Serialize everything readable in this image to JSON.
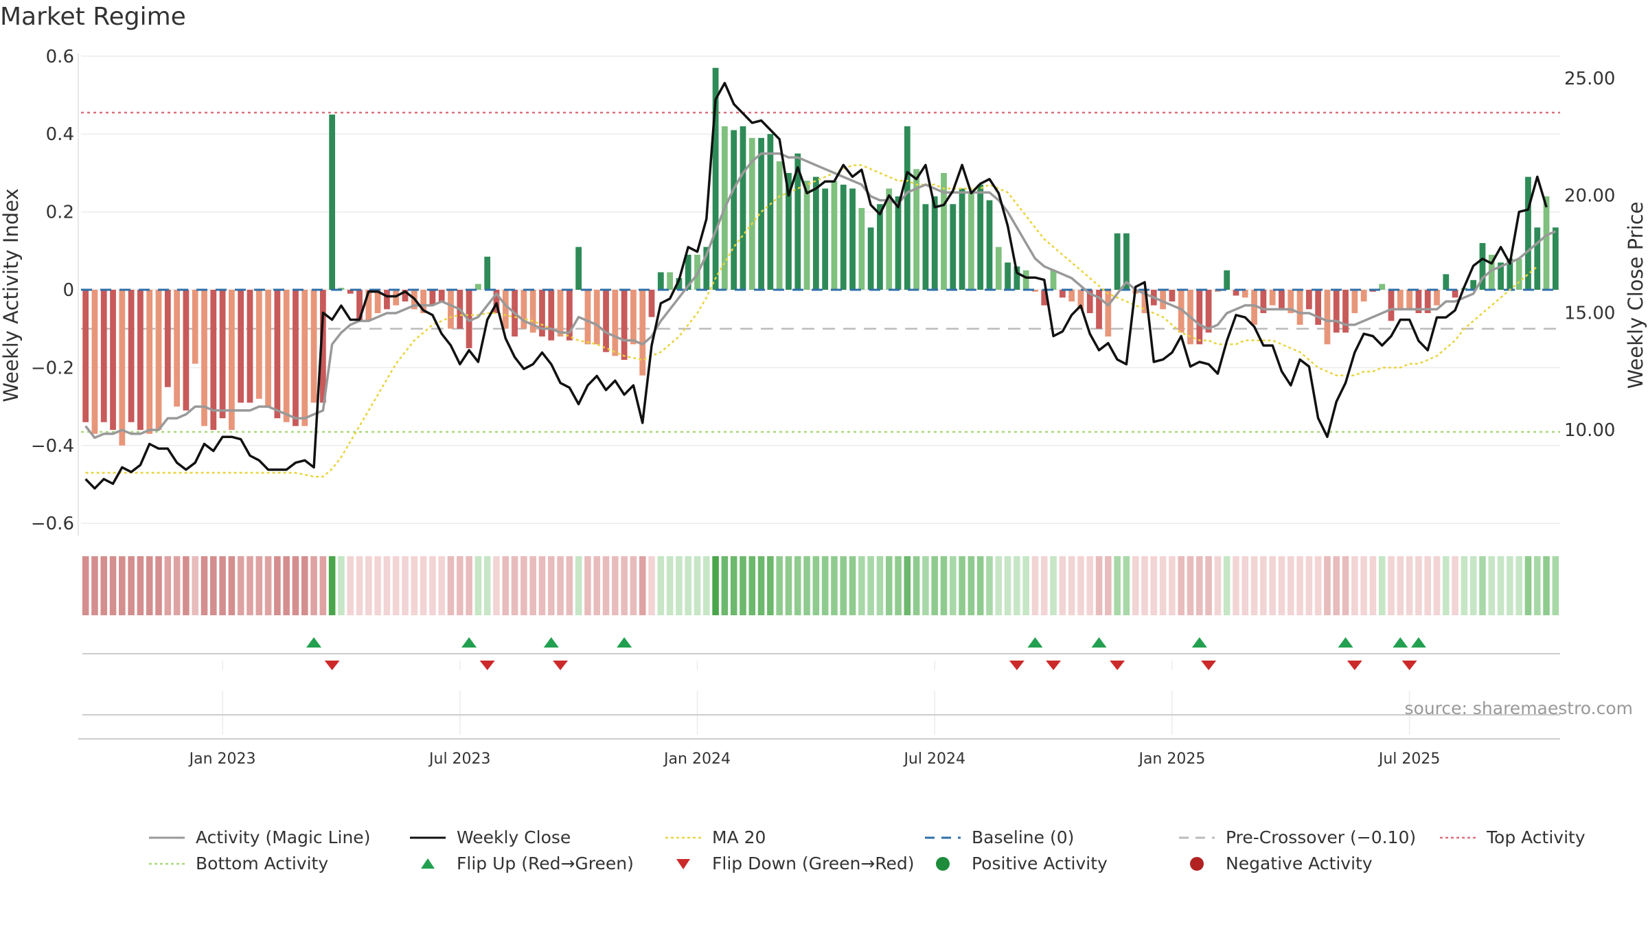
{
  "title": "Market Regime",
  "source": "source: sharemaestro.com",
  "chart_data": {
    "type": "bar",
    "title": "Market Regime",
    "ylabel": "Weekly Activity Index",
    "y2label": "Weekly Close Price",
    "ylim": [
      -0.62,
      0.6
    ],
    "y2lim": [
      5.8,
      25.5
    ],
    "yticks": [
      0.6,
      0.4,
      0.2,
      0,
      -0.2,
      -0.4,
      -0.6
    ],
    "ytick_labels": [
      "0.6",
      "0.4",
      "0.2",
      "0",
      "−0.2",
      "−0.4",
      "−0.6"
    ],
    "y2ticks": [
      25,
      20,
      15,
      10
    ],
    "y2tick_labels": [
      "25.00",
      "20.00",
      "15.00",
      "10.00"
    ],
    "xtick_labels": [
      "Jan 2023",
      "Jul 2023",
      "Jan 2024",
      "Jul 2024",
      "Jan 2025",
      "Jul 2025"
    ],
    "xtick_weeks": [
      15,
      41,
      67,
      93,
      119,
      145
    ],
    "reference_lines": {
      "top_activity": 0.455,
      "bottom_activity": -0.365,
      "pre_crossover": -0.1,
      "baseline": 0
    },
    "legend_position": "bottom",
    "grid": true,
    "colors": {
      "positive_strong": "#2e8b57",
      "positive_light": "#7fc07f",
      "negative_strong": "#c85a5a",
      "negative_light": "#e8967a",
      "close": "#111111",
      "magic_line": "#999999",
      "ma20": "#e8d43c",
      "baseline": "#2f6fa8",
      "pre_crossover": "#bbbbbb",
      "top_activity": "#d9707a",
      "bottom_activity": "#a8d878",
      "flip_up": "#22a050",
      "flip_down": "#cc2a2a"
    },
    "activity": [
      -0.34,
      -0.37,
      -0.34,
      -0.36,
      -0.4,
      -0.34,
      -0.36,
      -0.37,
      -0.36,
      -0.25,
      -0.3,
      -0.31,
      -0.19,
      -0.35,
      -0.36,
      -0.33,
      -0.36,
      -0.29,
      -0.29,
      -0.28,
      -0.3,
      -0.33,
      -0.34,
      -0.35,
      -0.35,
      -0.29,
      -0.29,
      0.45,
      0.005,
      -0.01,
      -0.08,
      -0.08,
      -0.06,
      -0.05,
      -0.04,
      -0.03,
      -0.05,
      -0.06,
      -0.04,
      -0.03,
      -0.1,
      -0.1,
      -0.15,
      0.015,
      0.085,
      -0.06,
      -0.1,
      -0.12,
      -0.1,
      -0.11,
      -0.12,
      -0.13,
      -0.12,
      -0.13,
      0.11,
      -0.14,
      -0.14,
      -0.16,
      -0.17,
      -0.18,
      -0.14,
      -0.22,
      -0.07,
      0.045,
      0.045,
      0.03,
      0.09,
      0.09,
      0.11,
      0.57,
      0.42,
      0.41,
      0.42,
      0.39,
      0.39,
      0.4,
      0.33,
      0.3,
      0.35,
      0.28,
      0.29,
      0.26,
      0.28,
      0.27,
      0.26,
      0.21,
      0.16,
      0.22,
      0.26,
      0.24,
      0.42,
      0.31,
      0.22,
      0.24,
      0.3,
      0.22,
      0.26,
      0.25,
      0.27,
      0.23,
      0.11,
      0.07,
      0.06,
      0.05,
      -0.005,
      -0.04,
      0.05,
      -0.02,
      -0.03,
      -0.05,
      -0.06,
      -0.1,
      -0.12,
      0.145,
      0.145,
      -0.01,
      -0.06,
      -0.04,
      -0.05,
      -0.03,
      -0.11,
      -0.14,
      -0.14,
      -0.11,
      -0.005,
      0.05,
      -0.015,
      -0.02,
      -0.09,
      -0.06,
      -0.04,
      -0.05,
      -0.06,
      -0.09,
      -0.05,
      -0.09,
      -0.14,
      -0.11,
      -0.11,
      -0.06,
      -0.03,
      -0.005,
      0.015,
      -0.08,
      -0.05,
      -0.05,
      -0.06,
      -0.06,
      -0.04,
      0.04,
      -0.02,
      0.005,
      0.025,
      0.12,
      0.09,
      0.07,
      0.08,
      0.08,
      0.29,
      0.16,
      0.24,
      0.16
    ],
    "close": [
      7.9,
      7.5,
      7.9,
      7.7,
      8.4,
      8.2,
      8.5,
      9.4,
      9.2,
      9.2,
      8.6,
      8.3,
      8.6,
      9.4,
      9.1,
      9.7,
      9.7,
      9.6,
      8.9,
      8.7,
      8.3,
      8.3,
      8.3,
      8.6,
      8.7,
      8.4,
      15.0,
      14.7,
      15.3,
      14.7,
      14.7,
      15.9,
      15.9,
      15.7,
      15.7,
      15.9,
      15.6,
      15.1,
      14.9,
      14.1,
      13.6,
      12.8,
      13.4,
      12.9,
      14.7,
      15.4,
      13.9,
      13.1,
      12.6,
      12.8,
      13.3,
      12.8,
      12.0,
      11.8,
      11.1,
      11.9,
      12.3,
      11.7,
      12.1,
      11.5,
      11.9,
      10.3,
      13.6,
      15.4,
      15.6,
      16.4,
      17.8,
      17.6,
      19.0,
      24.1,
      24.8,
      23.9,
      23.5,
      23.1,
      23.2,
      22.8,
      22.4,
      20.0,
      21.2,
      20.1,
      20.3,
      20.6,
      20.6,
      21.3,
      20.8,
      21.1,
      19.6,
      19.2,
      20.0,
      19.5,
      21.0,
      20.7,
      21.3,
      19.5,
      19.6,
      20.2,
      21.3,
      20.1,
      20.5,
      20.7,
      20.1,
      18.7,
      16.7,
      16.5,
      16.5,
      16.4,
      14.0,
      14.2,
      14.9,
      15.3,
      14.1,
      13.4,
      13.7,
      13.0,
      12.8,
      16.1,
      16.3,
      12.9,
      13.0,
      13.3,
      14.0,
      12.7,
      12.9,
      12.8,
      12.4,
      13.8,
      14.9,
      14.8,
      14.4,
      13.6,
      13.6,
      12.5,
      11.9,
      13.0,
      12.7,
      10.5,
      9.7,
      11.2,
      12.0,
      13.3,
      14.1,
      14.0,
      13.6,
      14.0,
      14.7,
      14.7,
      13.8,
      13.4,
      14.8,
      14.8,
      15.1,
      16.1,
      17.0,
      17.3,
      17.1,
      17.8,
      17.1,
      19.3,
      19.4,
      20.8,
      19.5
    ],
    "magic_line": [
      -0.35,
      -0.38,
      -0.37,
      -0.37,
      -0.36,
      -0.37,
      -0.37,
      -0.36,
      -0.36,
      -0.33,
      -0.33,
      -0.32,
      -0.3,
      -0.3,
      -0.31,
      -0.31,
      -0.31,
      -0.31,
      -0.31,
      -0.3,
      -0.3,
      -0.31,
      -0.32,
      -0.33,
      -0.33,
      -0.32,
      -0.31,
      -0.14,
      -0.11,
      -0.09,
      -0.08,
      -0.08,
      -0.07,
      -0.06,
      -0.06,
      -0.05,
      -0.04,
      -0.04,
      -0.04,
      -0.03,
      -0.04,
      -0.05,
      -0.08,
      -0.07,
      -0.04,
      -0.01,
      -0.04,
      -0.06,
      -0.08,
      -0.09,
      -0.1,
      -0.1,
      -0.11,
      -0.11,
      -0.07,
      -0.08,
      -0.09,
      -0.11,
      -0.12,
      -0.13,
      -0.13,
      -0.14,
      -0.12,
      -0.08,
      -0.05,
      -0.02,
      0.01,
      0.04,
      0.09,
      0.15,
      0.21,
      0.26,
      0.3,
      0.33,
      0.35,
      0.35,
      0.35,
      0.34,
      0.34,
      0.33,
      0.32,
      0.31,
      0.3,
      0.29,
      0.28,
      0.27,
      0.24,
      0.23,
      0.23,
      0.22,
      0.25,
      0.26,
      0.27,
      0.26,
      0.25,
      0.25,
      0.25,
      0.25,
      0.25,
      0.25,
      0.23,
      0.2,
      0.16,
      0.12,
      0.08,
      0.06,
      0.05,
      0.04,
      0.03,
      0.01,
      -0.01,
      -0.02,
      -0.04,
      -0.01,
      0.02,
      0.0,
      -0.01,
      -0.02,
      -0.03,
      -0.04,
      -0.05,
      -0.07,
      -0.09,
      -0.1,
      -0.09,
      -0.06,
      -0.05,
      -0.04,
      -0.04,
      -0.05,
      -0.05,
      -0.05,
      -0.05,
      -0.06,
      -0.06,
      -0.07,
      -0.08,
      -0.08,
      -0.09,
      -0.09,
      -0.08,
      -0.07,
      -0.06,
      -0.05,
      -0.05,
      -0.05,
      -0.05,
      -0.05,
      -0.05,
      -0.03,
      -0.03,
      -0.02,
      -0.01,
      0.03,
      0.05,
      0.06,
      0.07,
      0.08,
      0.1,
      0.12,
      0.14,
      0.15
    ],
    "ma20": [
      -0.47,
      -0.47,
      -0.47,
      -0.47,
      -0.47,
      -0.47,
      -0.47,
      -0.47,
      -0.47,
      -0.47,
      -0.47,
      -0.47,
      -0.47,
      -0.47,
      -0.47,
      -0.47,
      -0.47,
      -0.47,
      -0.47,
      -0.47,
      -0.47,
      -0.47,
      -0.47,
      -0.47,
      -0.475,
      -0.48,
      -0.48,
      -0.46,
      -0.43,
      -0.39,
      -0.35,
      -0.31,
      -0.27,
      -0.23,
      -0.19,
      -0.16,
      -0.13,
      -0.11,
      -0.09,
      -0.08,
      -0.07,
      -0.065,
      -0.065,
      -0.065,
      -0.06,
      -0.06,
      -0.065,
      -0.07,
      -0.075,
      -0.08,
      -0.09,
      -0.1,
      -0.11,
      -0.12,
      -0.13,
      -0.135,
      -0.14,
      -0.15,
      -0.16,
      -0.17,
      -0.175,
      -0.18,
      -0.17,
      -0.16,
      -0.14,
      -0.12,
      -0.09,
      -0.06,
      -0.02,
      0.03,
      0.07,
      0.11,
      0.14,
      0.17,
      0.2,
      0.22,
      0.24,
      0.25,
      0.26,
      0.27,
      0.28,
      0.29,
      0.3,
      0.31,
      0.32,
      0.32,
      0.31,
      0.3,
      0.29,
      0.28,
      0.28,
      0.27,
      0.27,
      0.27,
      0.26,
      0.26,
      0.26,
      0.26,
      0.26,
      0.27,
      0.26,
      0.25,
      0.22,
      0.19,
      0.16,
      0.13,
      0.11,
      0.09,
      0.07,
      0.05,
      0.03,
      0.01,
      -0.01,
      -0.02,
      -0.03,
      -0.04,
      -0.05,
      -0.06,
      -0.07,
      -0.09,
      -0.11,
      -0.12,
      -0.13,
      -0.13,
      -0.14,
      -0.14,
      -0.14,
      -0.13,
      -0.13,
      -0.13,
      -0.13,
      -0.14,
      -0.15,
      -0.16,
      -0.18,
      -0.2,
      -0.21,
      -0.22,
      -0.22,
      -0.22,
      -0.21,
      -0.21,
      -0.2,
      -0.2,
      -0.2,
      -0.19,
      -0.19,
      -0.18,
      -0.17,
      -0.15,
      -0.13,
      -0.1,
      -0.08,
      -0.06,
      -0.04,
      -0.02,
      0.0,
      0.02,
      0.04,
      0.06
    ],
    "flip_up_weeks": [
      25,
      42,
      51,
      59,
      104,
      111,
      122,
      138,
      144,
      146
    ],
    "flip_down_weeks": [
      27,
      44,
      52,
      102,
      106,
      113,
      123,
      139,
      145
    ]
  },
  "legend": [
    {
      "label": "Activity (Magic Line)",
      "symbol": "solid-line",
      "color": "#999999"
    },
    {
      "label": "Weekly Close",
      "symbol": "solid-line",
      "color": "#111111"
    },
    {
      "label": "MA 20",
      "symbol": "dotted-line",
      "color": "#e8d43c"
    },
    {
      "label": "Baseline (0)",
      "symbol": "dashed-line",
      "color": "#2f6fa8"
    },
    {
      "label": "Pre-Crossover (−0.10)",
      "symbol": "dashed-line",
      "color": "#bbbbbb"
    },
    {
      "label": "Top Activity",
      "symbol": "dotted-line",
      "color": "#d9707a"
    },
    {
      "label": "Bottom Activity",
      "symbol": "dotted-line",
      "color": "#a8d878"
    },
    {
      "label": "Flip Up (Red→Green)",
      "symbol": "triangle-up",
      "color": "#22a050"
    },
    {
      "label": "Flip Down (Green→Red)",
      "symbol": "triangle-down",
      "color": "#cc2a2a"
    },
    {
      "label": "Positive Activity",
      "symbol": "circle",
      "color": "#1e8c3a"
    },
    {
      "label": "Negative Activity",
      "symbol": "circle",
      "color": "#b22222"
    }
  ]
}
